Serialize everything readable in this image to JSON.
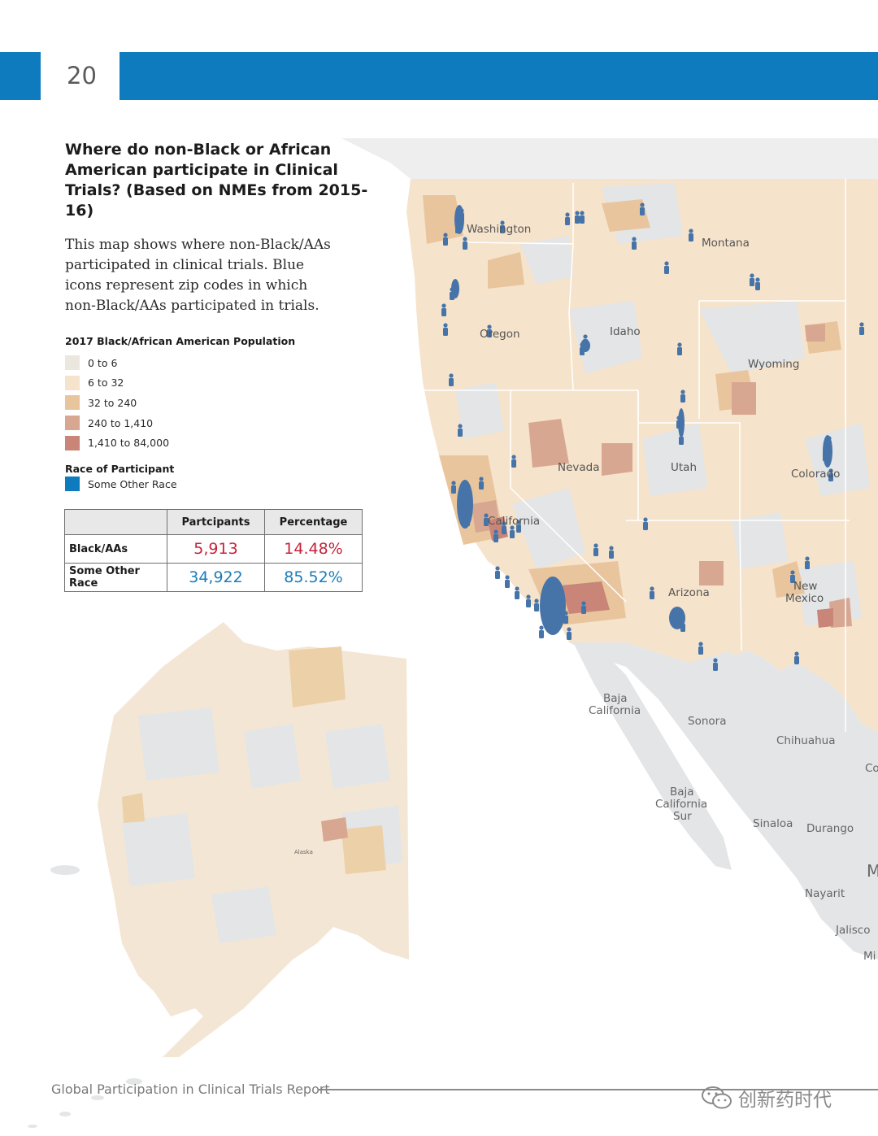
{
  "header": {
    "page_number": "20",
    "accent_color": "#0f7bbf"
  },
  "title": "Where do non-Black or African American participate in Clinical Trials? (Based on NMEs from 2015-16)",
  "description": "This map shows where non-Black/AAs participated in clinical trials. Blue icons represent zip codes in which non-Black/AAs participated in trials.",
  "legend": {
    "title": "2017 Black/African American Population",
    "items": [
      {
        "label": "0 to 6",
        "color": "#ece7de"
      },
      {
        "label": "6 to 32",
        "color": "#f6e3cb"
      },
      {
        "label": "32 to 240",
        "color": "#e9c59e"
      },
      {
        "label": "240 to 1,410",
        "color": "#d7a792"
      },
      {
        "label": "1,410 to 84,000",
        "color": "#c98678"
      }
    ]
  },
  "race_legend": {
    "title": "Race of Participant",
    "items": [
      {
        "label": "Some Other Race",
        "color": "#0f7bbf"
      }
    ]
  },
  "table": {
    "headers": [
      "",
      "Partcipants",
      "Percentage"
    ],
    "rows": [
      {
        "label": "Black/AAs",
        "participants": "5,913",
        "percentage": "14.48%",
        "color": "#c8223a"
      },
      {
        "label": "Some Other Race",
        "participants": "34,922",
        "percentage": "85.52%",
        "color": "#1b7db8"
      }
    ]
  },
  "map": {
    "state_labels": [
      "Washington",
      "Montana",
      "Oregon",
      "Idaho",
      "Wyoming",
      "Nevada",
      "Utah",
      "Colorado",
      "California",
      "Arizona",
      "New Mexico",
      "Alaska"
    ],
    "mexico_labels": [
      "Baja California",
      "Sonora",
      "Chihuahua",
      "Baja California Sur",
      "Sinaloa",
      "Durango",
      "Nayarit",
      "Jalisco",
      "Co",
      "M",
      "Mi"
    ],
    "participant_icon": "person-icon"
  },
  "footer": {
    "text": "Global Participation in Clinical Trials Report"
  },
  "watermark": {
    "text": "创新药时代",
    "icon": "wechat-icon"
  }
}
